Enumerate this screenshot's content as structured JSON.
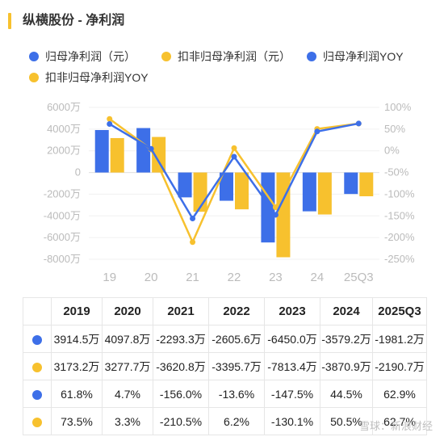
{
  "title": "纵横股份 - 净利润",
  "colors": {
    "blue": "#3d6fe8",
    "yellow": "#f7c12e"
  },
  "chart_data": {
    "type": "bar+line",
    "categories": [
      "19",
      "20",
      "21",
      "22",
      "23",
      "24",
      "25Q3"
    ],
    "series": [
      {
        "name": "归母净利润（元）",
        "type": "bar",
        "axis": "left",
        "color": "#3d6fe8",
        "values": [
          3914.5,
          4097.8,
          -2293.3,
          -2605.6,
          -6450.0,
          -3579.2,
          -1981.2
        ]
      },
      {
        "name": "扣非归母净利润（元）",
        "type": "bar",
        "axis": "left",
        "color": "#f7c12e",
        "values": [
          3173.2,
          3277.7,
          -3620.8,
          -3395.7,
          -7813.4,
          -3870.9,
          -2190.7
        ]
      },
      {
        "name": "归母净利润YOY",
        "type": "line",
        "axis": "right",
        "color": "#3d6fe8",
        "values": [
          61.8,
          4.7,
          -156.0,
          -13.6,
          -147.5,
          44.5,
          62.9
        ]
      },
      {
        "name": "扣非归母净利润YOY",
        "type": "line",
        "axis": "right",
        "color": "#f7c12e",
        "values": [
          73.5,
          3.3,
          -210.5,
          6.2,
          -130.1,
          50.5,
          62.7
        ]
      }
    ],
    "y_left": {
      "min": -8000,
      "max": 6000,
      "ticks": [
        "6000万",
        "4000万",
        "2000万",
        "0",
        "-2000万",
        "-4000万",
        "-6000万",
        "-8000万"
      ]
    },
    "y_right": {
      "min": -250,
      "max": 100,
      "ticks": [
        "100%",
        "50%",
        "0%",
        "-50%",
        "-100%",
        "-150%",
        "-200%",
        "-250%"
      ]
    },
    "grid": true,
    "legend_position": "top"
  },
  "table": {
    "headers": [
      "2019",
      "2020",
      "2021",
      "2022",
      "2023",
      "2024",
      "2025Q3"
    ],
    "rows": [
      {
        "color": "#3d6fe8",
        "cells": [
          "3914.5万",
          "4097.8万",
          "-2293.3万",
          "-2605.6万",
          "-6450.0万",
          "-3579.2万",
          "-1981.2万"
        ]
      },
      {
        "color": "#f7c12e",
        "cells": [
          "3173.2万",
          "3277.7万",
          "-3620.8万",
          "-3395.7万",
          "-7813.4万",
          "-3870.9万",
          "-2190.7万"
        ]
      },
      {
        "color": "#3d6fe8",
        "cells": [
          "61.8%",
          "4.7%",
          "-156.0%",
          "-13.6%",
          "-147.5%",
          "44.5%",
          "62.9%"
        ]
      },
      {
        "color": "#f7c12e",
        "cells": [
          "73.5%",
          "3.3%",
          "-210.5%",
          "6.2%",
          "-130.1%",
          "50.5%",
          "62.7%"
        ]
      }
    ]
  },
  "watermark": "雪球：新浪财经"
}
